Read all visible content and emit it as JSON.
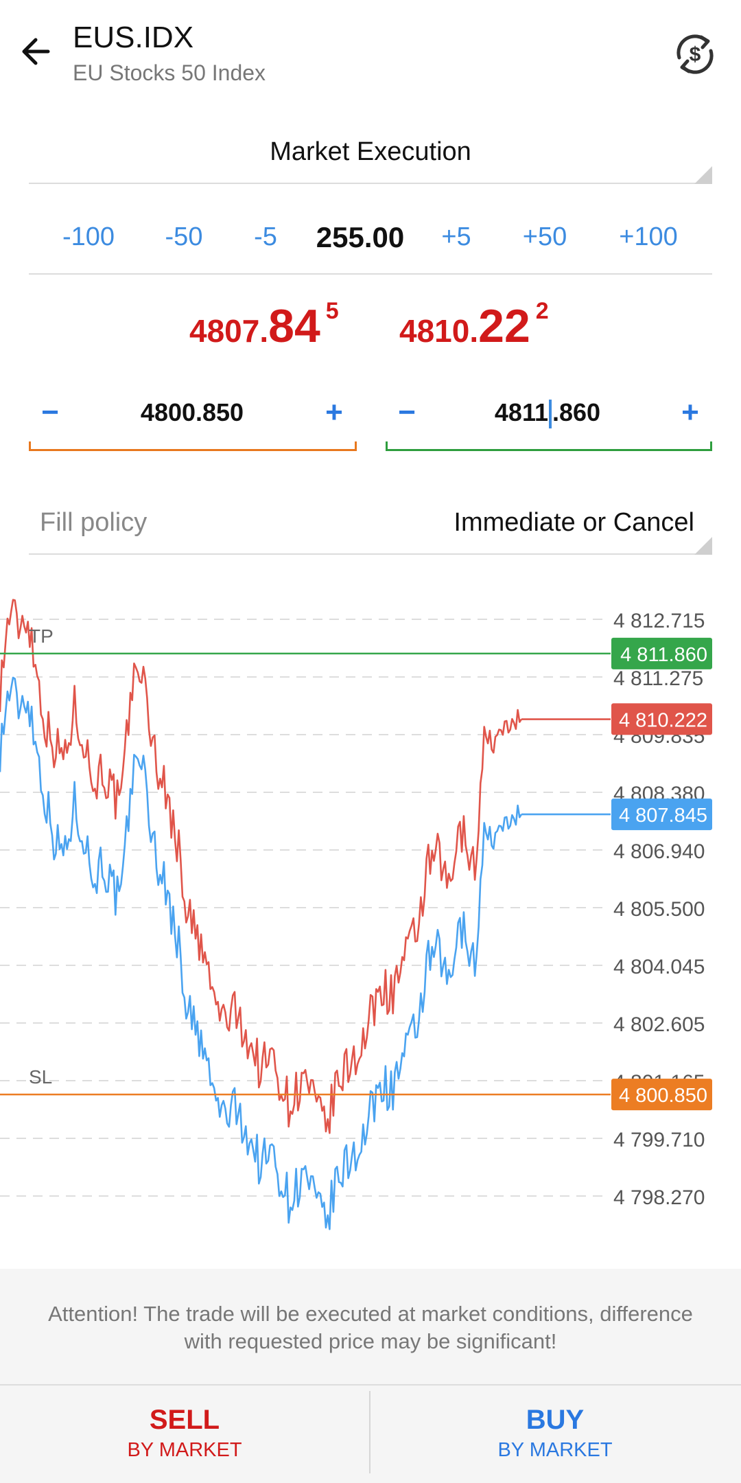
{
  "header": {
    "symbol": "EUS.IDX",
    "name": "EU Stocks 50 Index"
  },
  "execution": {
    "label": "Market Execution"
  },
  "volume": {
    "buttons": [
      "-100",
      "-50",
      "-5",
      "+5",
      "+50",
      "+100"
    ],
    "value": "255.00"
  },
  "prices": {
    "bid": {
      "main": "4807.",
      "big": "84",
      "sup": "5"
    },
    "ask": {
      "main": "4810.",
      "big": "22",
      "sup": "2"
    }
  },
  "stop_loss": {
    "minus": "−",
    "value": "4800.850",
    "plus": "+",
    "color": "#e8781e"
  },
  "take_profit": {
    "minus": "−",
    "value_before_cursor": "4811",
    "value_after_cursor": ".860",
    "plus": "+",
    "color": "#2e9e3e"
  },
  "fill_policy": {
    "label": "Fill policy",
    "value": "Immediate or Cancel"
  },
  "chart_data": {
    "type": "line",
    "y_axis_labels": [
      "4 812.715",
      "4 811.275",
      "4 809.835",
      "4 808.380",
      "4 806.940",
      "4 805.500",
      "4 804.045",
      "4 802.605",
      "4 801.165",
      "4 799.710",
      "4 798.270"
    ],
    "series": [
      {
        "values": [
          4811.0,
          4812.9,
          4812.6,
          4812.8,
          4811.3,
          4810.0,
          4809.5,
          4809.3,
          4810.5,
          4809.8,
          4808.6,
          4809.0,
          4808.4,
          4808.0,
          4810.8,
          4811.7,
          4810.2,
          4809.0,
          4808.2,
          4807.2,
          4805.6,
          4804.8,
          4804.2,
          4803.2,
          4802.7,
          4802.9,
          4802.6,
          4802.0,
          4801.5,
          4801.8,
          4801.3,
          4800.6,
          4801.0,
          4801.2,
          4800.4,
          4800.0,
          4800.9,
          4801.4,
          4801.8,
          4802.1,
          4802.9,
          4803.6,
          4803.3,
          4804.0,
          4804.4,
          4805.2,
          4806.5,
          4806.8,
          4806.0,
          4806.9,
          4807.6,
          4806.2,
          4809.9,
          4809.6,
          4809.9,
          4810.2,
          4810.22
        ]
      },
      {
        "values": [
          4809.5,
          4811.0,
          4810.6,
          4810.8,
          4809.4,
          4808.1,
          4807.1,
          4806.9,
          4808.1,
          4807.4,
          4806.2,
          4806.7,
          4806.0,
          4805.6,
          4808.4,
          4809.6,
          4807.8,
          4806.6,
          4805.8,
          4804.8,
          4803.2,
          4802.4,
          4801.8,
          4800.8,
          4800.3,
          4800.5,
          4800.2,
          4799.6,
          4799.1,
          4799.4,
          4798.9,
          4798.2,
          4798.6,
          4798.8,
          4798.0,
          4797.6,
          4798.5,
          4799.0,
          4799.4,
          4799.7,
          4800.5,
          4801.2,
          4800.9,
          4801.6,
          4802.0,
          4802.8,
          4804.1,
          4804.4,
          4803.6,
          4804.5,
          4805.2,
          4803.8,
          4807.5,
          4807.2,
          4807.5,
          4807.8,
          4807.845
        ]
      }
    ],
    "lines": [
      {
        "label": "TP",
        "value": 4811.86,
        "tag": "4 811.860",
        "color": "#35a64b"
      },
      {
        "label": "SL",
        "value": 4800.85,
        "tag": "4 800.850",
        "color": "#ec7d23"
      },
      {
        "label": "",
        "value": 4810.222,
        "tag": "4 810.222",
        "color": "#e0554a"
      },
      {
        "label": "",
        "value": 4807.845,
        "tag": "4 807.845",
        "color": "#4aa3f0"
      }
    ],
    "colors": {
      "ask": "#e0554a",
      "bid": "#4aa3f0",
      "grid": "#dddddd"
    },
    "grid": true
  },
  "attention": {
    "line1": "Attention! The trade will be executed at market conditions, difference",
    "line2": "with requested price may be significant!"
  },
  "actions": {
    "sell": {
      "label": "SELL",
      "sub": "BY MARKET",
      "color": "#d11a1a"
    },
    "buy": {
      "label": "BUY",
      "sub": "BY MARKET",
      "color": "#2a78e0"
    }
  }
}
